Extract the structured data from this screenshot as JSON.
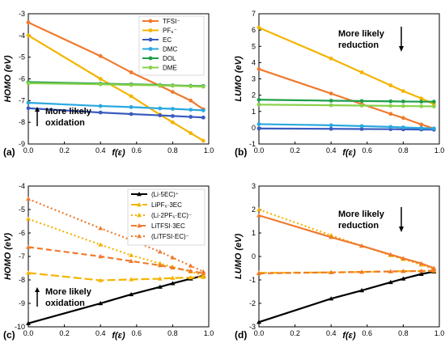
{
  "chart_data": [
    {
      "panel": "(a)",
      "type": "line",
      "xlabel": "f(ε)",
      "ylabel": "HOMO (eV)",
      "xlim": [
        0.0,
        1.0
      ],
      "ylim": [
        -9,
        -3
      ],
      "xticks": [
        "0.0",
        "0.2",
        "0.4",
        "0.6",
        "0.8",
        "1.0"
      ],
      "yticks": [
        "-3",
        "-4",
        "-5",
        "-6",
        "-7",
        "-8",
        "-9"
      ],
      "legend_position": "top-right",
      "annotation": {
        "line1": "More likely",
        "line2": "oxidation",
        "arrow": "up"
      },
      "series": [
        {
          "name": "TFSI⁻",
          "color": "#f07a2e",
          "marker": "circle",
          "dash": "solid",
          "x": [
            0,
            0.4,
            0.57,
            0.73,
            0.8,
            0.9,
            0.97
          ],
          "y": [
            -3.4,
            -4.95,
            -5.7,
            -6.32,
            -6.6,
            -7.0,
            -7.4
          ]
        },
        {
          "name": "PF₆⁻",
          "color": "#f4b400",
          "marker": "circle",
          "dash": "solid",
          "x": [
            0,
            0.4,
            0.57,
            0.73,
            0.8,
            0.9,
            0.97
          ],
          "y": [
            -4.0,
            -6.0,
            -6.8,
            -7.65,
            -8.0,
            -8.5,
            -8.85
          ]
        },
        {
          "name": "EC",
          "color": "#3a5bbf",
          "marker": "circle",
          "dash": "solid",
          "x": [
            0,
            0.4,
            0.57,
            0.73,
            0.8,
            0.9,
            0.97
          ],
          "y": [
            -7.35,
            -7.55,
            -7.62,
            -7.68,
            -7.71,
            -7.75,
            -7.78
          ]
        },
        {
          "name": "DMC",
          "color": "#2aa8e0",
          "marker": "circle",
          "dash": "solid",
          "x": [
            0,
            0.4,
            0.57,
            0.73,
            0.8,
            0.9,
            0.97
          ],
          "y": [
            -7.1,
            -7.25,
            -7.3,
            -7.36,
            -7.38,
            -7.42,
            -7.45
          ]
        },
        {
          "name": "DOL",
          "color": "#1e9e4a",
          "marker": "circle",
          "dash": "solid",
          "x": [
            0,
            0.4,
            0.57,
            0.73,
            0.8,
            0.9,
            0.97
          ],
          "y": [
            -6.15,
            -6.22,
            -6.25,
            -6.28,
            -6.3,
            -6.32,
            -6.33
          ]
        },
        {
          "name": "DME",
          "color": "#8ad14a",
          "marker": "circle",
          "dash": "solid",
          "x": [
            0,
            0.4,
            0.57,
            0.73,
            0.8,
            0.9,
            0.97
          ],
          "y": [
            -6.2,
            -6.25,
            -6.28,
            -6.3,
            -6.32,
            -6.34,
            -6.36
          ]
        }
      ]
    },
    {
      "panel": "(b)",
      "type": "line",
      "xlabel": "f(ε)",
      "ylabel": "LUMO (eV)",
      "xlim": [
        0.0,
        1.0
      ],
      "ylim": [
        -1,
        7
      ],
      "xticks": [
        "0.0",
        "0.2",
        "0.4",
        "0.6",
        "0.8",
        "1.0"
      ],
      "yticks": [
        "7",
        "6",
        "5",
        "4",
        "3",
        "2",
        "1",
        "0",
        "-1"
      ],
      "annotation": {
        "line1": "More likely",
        "line2": "reduction",
        "arrow": "down"
      },
      "series": [
        {
          "name": "TFSI⁻",
          "color": "#f07a2e",
          "marker": "circle",
          "dash": "solid",
          "x": [
            0,
            0.4,
            0.57,
            0.73,
            0.8,
            0.9,
            0.97
          ],
          "y": [
            3.6,
            2.1,
            1.45,
            0.85,
            0.6,
            0.2,
            -0.05
          ]
        },
        {
          "name": "PF₆⁻",
          "color": "#f4b400",
          "marker": "circle",
          "dash": "solid",
          "x": [
            0,
            0.4,
            0.57,
            0.73,
            0.8,
            0.9,
            0.97
          ],
          "y": [
            6.15,
            4.25,
            3.4,
            2.6,
            2.25,
            1.8,
            1.45
          ]
        },
        {
          "name": "EC",
          "color": "#3a5bbf",
          "marker": "circle",
          "dash": "solid",
          "x": [
            0,
            0.4,
            0.57,
            0.73,
            0.8,
            0.9,
            0.97
          ],
          "y": [
            -0.05,
            -0.07,
            -0.08,
            -0.09,
            -0.1,
            -0.11,
            -0.12
          ]
        },
        {
          "name": "DMC",
          "color": "#2aa8e0",
          "marker": "circle",
          "dash": "solid",
          "x": [
            0,
            0.4,
            0.57,
            0.73,
            0.8,
            0.9,
            0.97
          ],
          "y": [
            0.22,
            0.15,
            0.1,
            0.05,
            0.02,
            -0.02,
            -0.05
          ]
        },
        {
          "name": "DOL",
          "color": "#1e9e4a",
          "marker": "circle",
          "dash": "solid",
          "x": [
            0,
            0.4,
            0.57,
            0.73,
            0.8,
            0.9,
            0.97
          ],
          "y": [
            1.72,
            1.66,
            1.64,
            1.62,
            1.61,
            1.6,
            1.6
          ]
        },
        {
          "name": "DME",
          "color": "#8ad14a",
          "marker": "circle",
          "dash": "solid",
          "x": [
            0,
            0.4,
            0.57,
            0.73,
            0.8,
            0.9,
            0.97
          ],
          "y": [
            1.42,
            1.38,
            1.36,
            1.34,
            1.33,
            1.32,
            1.31
          ]
        }
      ]
    },
    {
      "panel": "(c)",
      "type": "line",
      "xlabel": "f(ε)",
      "ylabel": "HOMO (eV)",
      "xlim": [
        0.0,
        1.0
      ],
      "ylim": [
        -10,
        -4
      ],
      "xticks": [
        "0.0",
        "0.2",
        "0.4",
        "0.6",
        "0.8",
        "1.0"
      ],
      "yticks": [
        "-4",
        "-5",
        "-6",
        "-7",
        "-8",
        "-9",
        "-10"
      ],
      "legend_position": "top-right",
      "annotation": {
        "line1": "More likely",
        "line2": "oxidation",
        "arrow": "up"
      },
      "series": [
        {
          "name": "(Li·5EC)⁺",
          "color": "#000000",
          "marker": "triangle",
          "dash": "solid",
          "x": [
            0,
            0.4,
            0.57,
            0.73,
            0.8,
            0.9,
            0.97
          ],
          "y": [
            -9.85,
            -9.0,
            -8.62,
            -8.3,
            -8.15,
            -7.95,
            -7.82
          ]
        },
        {
          "name": "LiPF₆·3EC",
          "color": "#f4b400",
          "marker": "triangle",
          "dash": "longdash",
          "x": [
            0,
            0.4,
            0.57,
            0.73,
            0.8,
            0.9,
            0.97
          ],
          "y": [
            -7.7,
            -8.02,
            -7.98,
            -7.95,
            -7.92,
            -7.9,
            -7.88
          ]
        },
        {
          "name": "(Li·2PF₆·EC)⁻",
          "color": "#f4b400",
          "marker": "triangle",
          "dash": "dot",
          "x": [
            0,
            0.4,
            0.57,
            0.73,
            0.8,
            0.9,
            0.97
          ],
          "y": [
            -5.4,
            -6.5,
            -6.95,
            -7.3,
            -7.45,
            -7.65,
            -7.8
          ]
        },
        {
          "name": "LiTFSI·3EC",
          "color": "#f07a2e",
          "marker": "triangle",
          "dash": "dash",
          "x": [
            0,
            0.4,
            0.57,
            0.73,
            0.8,
            0.9,
            0.97
          ],
          "y": [
            -6.6,
            -7.0,
            -7.2,
            -7.38,
            -7.48,
            -7.62,
            -7.72
          ]
        },
        {
          "name": "(LiTFSI·EC)⁻",
          "color": "#f07a2e",
          "marker": "triangle",
          "dash": "dot",
          "x": [
            0,
            0.4,
            0.57,
            0.73,
            0.8,
            0.9,
            0.97
          ],
          "y": [
            -4.55,
            -5.8,
            -6.3,
            -6.8,
            -7.05,
            -7.4,
            -7.65
          ]
        }
      ]
    },
    {
      "panel": "(d)",
      "type": "line",
      "xlabel": "f(ε)",
      "ylabel": "LUMO (eV)",
      "xlim": [
        0.0,
        1.0
      ],
      "ylim": [
        -3,
        3
      ],
      "xticks": [
        "0.0",
        "0.2",
        "0.4",
        "0.6",
        "0.8",
        "1.0"
      ],
      "yticks": [
        "3",
        "2",
        "1",
        "0",
        "-1",
        "-2",
        "-3"
      ],
      "annotation": {
        "line1": "More likely",
        "line2": "reduction",
        "arrow": "down"
      },
      "series": [
        {
          "name": "(Li·5EC)⁺",
          "color": "#000000",
          "marker": "triangle",
          "dash": "solid",
          "x": [
            0,
            0.4,
            0.57,
            0.73,
            0.8,
            0.9,
            0.97
          ],
          "y": [
            -2.8,
            -1.8,
            -1.45,
            -1.1,
            -0.95,
            -0.75,
            -0.65
          ]
        },
        {
          "name": "LiPF₆·3EC",
          "color": "#f4b400",
          "marker": "triangle",
          "dash": "longdash",
          "x": [
            0,
            0.4,
            0.57,
            0.73,
            0.8,
            0.9,
            0.97
          ],
          "y": [
            -0.7,
            -0.68,
            -0.66,
            -0.64,
            -0.63,
            -0.62,
            -0.62
          ]
        },
        {
          "name": "(Li·2PF₆·EC)⁻",
          "color": "#f4b400",
          "marker": "triangle",
          "dash": "dot",
          "x": [
            0,
            0.4,
            0.57,
            0.73,
            0.8,
            0.9,
            0.97
          ],
          "y": [
            2.0,
            0.9,
            0.45,
            0.05,
            -0.12,
            -0.35,
            -0.55
          ]
        },
        {
          "name": "LiTFSI·3EC",
          "color": "#f07a2e",
          "marker": "triangle",
          "dash": "dash",
          "x": [
            0,
            0.4,
            0.57,
            0.73,
            0.8,
            0.9,
            0.97
          ],
          "y": [
            -0.72,
            -0.68,
            -0.66,
            -0.64,
            -0.63,
            -0.62,
            -0.6
          ]
        },
        {
          "name": "(LiTFSI·EC)⁻",
          "color": "#f07a2e",
          "marker": "triangle",
          "dash": "solid",
          "x": [
            0,
            0.4,
            0.57,
            0.73,
            0.8,
            0.9,
            0.97
          ],
          "y": [
            1.75,
            0.82,
            0.45,
            0.08,
            -0.08,
            -0.3,
            -0.5
          ]
        }
      ]
    }
  ]
}
